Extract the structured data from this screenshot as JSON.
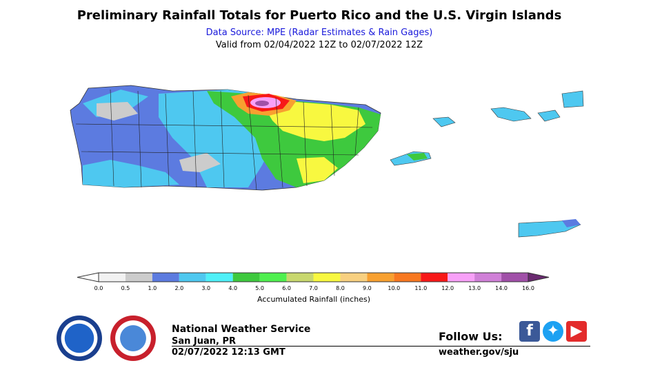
{
  "header": {
    "title": "Preliminary Rainfall Totals for Puerto Rico and the U.S. Virgin Islands",
    "subtitle": "Data Source: MPE (Radar Estimates & Rain Gages)",
    "valid": "Valid from 02/04/2022 12Z to 02/07/2022 12Z"
  },
  "legend": {
    "label": "Accumulated Rainfall (inches)",
    "ticks": [
      "0.0",
      "0.5",
      "1.0",
      "2.0",
      "3.0",
      "4.0",
      "5.0",
      "6.0",
      "7.0",
      "8.0",
      "9.0",
      "10.0",
      "11.0",
      "12.0",
      "13.0",
      "14.0",
      "16.0"
    ],
    "colors": [
      "#f2f2f2",
      "#cccccc",
      "#5c7be0",
      "#4ec8f0",
      "#4ef0f8",
      "#3ec93e",
      "#4ff04f",
      "#c8d86e",
      "#f8f840",
      "#f8d080",
      "#f8a030",
      "#f87820",
      "#f81818",
      "#f8a0f8",
      "#d080d8",
      "#a050a8"
    ]
  },
  "footer": {
    "org": "National Weather Service",
    "location": "San Juan, PR",
    "timestamp": "02/07/2022 12:13 GMT",
    "follow": "Follow Us:",
    "website": "weather.gov/sju"
  },
  "icons": [
    "noaa-logo-icon",
    "nws-logo-icon",
    "facebook-icon",
    "twitter-icon",
    "youtube-icon"
  ]
}
